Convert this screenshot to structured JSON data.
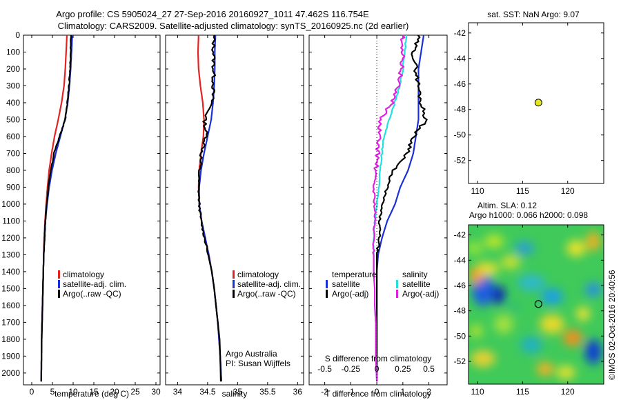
{
  "title_line1": "Argo profile: CS 5905024_27 27-Sep-2016 20160927_1011 47.462S 116.754E",
  "title_line2": "Climatology: CARS2009. Satellite-adjusted climatology: synTS_20160925.nc (2d earlier)",
  "watermark": "©IMOS 02-Oct-2016 20:40:56",
  "colors": {
    "climatology": "#e32222",
    "satellite": "#1a2fd6",
    "argo": "#000000",
    "satellite_s": "#22e0e0",
    "argo_s": "#e020e0",
    "dot": "#e6e61e"
  },
  "chart_data": [
    {
      "type": "line",
      "name": "temperature_profile",
      "xlabel": "temperature (deg C)",
      "xlim": [
        -2,
        31
      ],
      "ylim": [
        2070,
        0
      ],
      "xticks": [
        "0",
        "5",
        "10",
        "15",
        "20",
        "25",
        "30"
      ],
      "yticks": [
        "0",
        "100",
        "200",
        "300",
        "400",
        "500",
        "600",
        "700",
        "800",
        "900",
        "1000",
        "1100",
        "1200",
        "1300",
        "1400",
        "1500",
        "1600",
        "1700",
        "1800",
        "1900",
        "2000"
      ],
      "legend": [
        "climatology",
        "satellite-adj. clim.",
        "Argo(..raw -QC)"
      ],
      "series": [
        {
          "name": "climatology",
          "x": [
            8.5,
            8.3,
            8.1,
            7.8,
            7.2,
            6.4,
            5.5,
            4.8,
            4.2,
            3.8,
            3.5,
            3.2,
            3.0,
            2.9,
            2.8,
            2.7,
            2.6,
            2.5,
            2.4,
            2.35,
            2.3
          ],
          "y": [
            0,
            100,
            200,
            300,
            400,
            500,
            600,
            700,
            800,
            900,
            1000,
            1100,
            1200,
            1300,
            1400,
            1500,
            1600,
            1700,
            1800,
            1900,
            2050
          ]
        },
        {
          "name": "satellite-adj. clim.",
          "x": [
            9.8,
            9.6,
            9.4,
            9.1,
            8.7,
            8.0,
            6.9,
            5.8,
            4.9,
            4.2,
            3.7,
            3.3,
            3.1,
            2.9,
            2.8,
            2.7,
            2.6,
            2.5,
            2.4,
            2.35,
            2.3
          ],
          "y": [
            0,
            100,
            200,
            300,
            400,
            500,
            600,
            700,
            800,
            900,
            1000,
            1100,
            1200,
            1300,
            1400,
            1500,
            1600,
            1700,
            1800,
            1900,
            2050
          ]
        },
        {
          "name": "Argo(..raw -QC)",
          "x": [
            9.5,
            9.4,
            9.3,
            9.0,
            8.6,
            8.1,
            6.7,
            5.4,
            4.6,
            4.0,
            3.6,
            3.3,
            3.1,
            2.9,
            2.8,
            2.7,
            2.6,
            2.5,
            2.4,
            2.35,
            2.3
          ],
          "y": [
            0,
            100,
            200,
            300,
            400,
            500,
            600,
            700,
            800,
            900,
            1000,
            1100,
            1200,
            1300,
            1400,
            1500,
            1600,
            1700,
            1800,
            1900,
            2050
          ]
        }
      ]
    },
    {
      "type": "line",
      "name": "salinity_profile",
      "xlabel": "salinity",
      "xlim": [
        33.8,
        36.1
      ],
      "ylim": [
        2070,
        0
      ],
      "xticks": [
        "34",
        "34.5",
        "35",
        "35.5",
        "36"
      ],
      "legend": [
        "climatology",
        "satellite-adj. clim.",
        "Argo(..raw -QC)"
      ],
      "annotation": [
        "Argo Australia",
        "PI: Susan Wijffels"
      ],
      "series": [
        {
          "name": "climatology",
          "x": [
            34.35,
            34.34,
            34.35,
            34.38,
            34.42,
            34.44,
            34.43,
            34.39,
            34.36,
            34.35,
            34.36,
            34.4,
            34.46,
            34.52,
            34.57,
            34.61,
            34.64,
            34.67,
            34.69,
            34.71,
            34.73
          ],
          "y": [
            0,
            100,
            200,
            300,
            400,
            500,
            600,
            700,
            800,
            900,
            1000,
            1100,
            1200,
            1300,
            1400,
            1500,
            1600,
            1700,
            1800,
            1900,
            2050
          ]
        },
        {
          "name": "satellite-adj. clim.",
          "x": [
            34.63,
            34.62,
            34.62,
            34.61,
            34.59,
            34.56,
            34.5,
            34.44,
            34.39,
            34.36,
            34.36,
            34.4,
            34.46,
            34.52,
            34.57,
            34.61,
            34.64,
            34.67,
            34.69,
            34.71,
            34.73
          ],
          "y": [
            0,
            100,
            200,
            300,
            400,
            500,
            600,
            700,
            800,
            900,
            1000,
            1100,
            1200,
            1300,
            1400,
            1500,
            1600,
            1700,
            1800,
            1900,
            2050
          ]
        },
        {
          "name": "Argo(..raw -QC)",
          "x": [
            34.6,
            34.6,
            34.6,
            34.6,
            34.57,
            34.45,
            34.48,
            34.4,
            34.36,
            34.35,
            34.36,
            34.39,
            34.45,
            34.51,
            34.57,
            34.61,
            34.64,
            34.67,
            34.7,
            34.71,
            34.72
          ],
          "y": [
            0,
            100,
            200,
            300,
            400,
            500,
            600,
            700,
            800,
            900,
            1000,
            1100,
            1200,
            1300,
            1400,
            1500,
            1600,
            1700,
            1800,
            1900,
            2050
          ]
        }
      ]
    },
    {
      "type": "line",
      "name": "difference_profile",
      "xlabel": "T difference from climatology",
      "xlim": [
        -2.6,
        2.7
      ],
      "ylim": [
        2070,
        0
      ],
      "xticks": [
        "-2",
        "-1",
        "0",
        "1",
        "2"
      ],
      "top_label": "S difference from climatology",
      "top_ticks": [
        "-0.5",
        "-0.25",
        "0",
        "0.25",
        "0.5"
      ],
      "legend_t_title": "temperature",
      "legend_s_title": "salinity",
      "legend_t": [
        "satellite",
        "Argo(-adj)"
      ],
      "legend_s": [
        "satellite",
        "Argo(-adj)"
      ],
      "series": [
        {
          "name": "T satellite",
          "x": [
            1.8,
            1.7,
            1.6,
            1.6,
            1.6,
            1.6,
            1.5,
            1.4,
            1.2,
            0.9,
            0.7,
            0.4,
            0.2,
            0.05,
            0,
            0,
            0,
            0,
            0,
            0,
            0
          ],
          "y": [
            0,
            100,
            200,
            300,
            400,
            500,
            600,
            700,
            800,
            900,
            1000,
            1100,
            1200,
            1300,
            1400,
            1500,
            1600,
            1700,
            1800,
            1900,
            2050
          ]
        },
        {
          "name": "T Argo(-adj)",
          "x": [
            1.6,
            1.4,
            1.5,
            1.6,
            1.7,
            1.9,
            1.4,
            1.2,
            0.6,
            0.4,
            0.2,
            0.1,
            0.1,
            0,
            0,
            0,
            0,
            0,
            0,
            0,
            0
          ],
          "y": [
            0,
            100,
            200,
            300,
            400,
            500,
            600,
            700,
            800,
            900,
            1000,
            1100,
            1200,
            1300,
            1400,
            1500,
            1600,
            1700,
            1800,
            1900,
            2050
          ]
        },
        {
          "name": "S satellite",
          "x": [
            0.28,
            0.27,
            0.25,
            0.22,
            0.17,
            0.12,
            0.07,
            0.05,
            0.03,
            0.02,
            0,
            -0.02,
            -0.03,
            -0.03,
            -0.03,
            -0.02,
            -0.02,
            -0.01,
            -0.01,
            -0.01,
            0
          ],
          "y": [
            0,
            100,
            200,
            300,
            400,
            500,
            600,
            700,
            800,
            900,
            1000,
            1100,
            1200,
            1300,
            1400,
            1500,
            1600,
            1700,
            1800,
            1900,
            2050
          ]
        },
        {
          "name": "S Argo(-adj)",
          "x": [
            0.25,
            0.25,
            0.24,
            0.2,
            0.15,
            0.03,
            0.02,
            0.01,
            -0.01,
            -0.03,
            -0.02,
            -0.02,
            -0.03,
            -0.03,
            -0.03,
            -0.02,
            -0.02,
            -0.01,
            -0.01,
            -0.01,
            0
          ],
          "y": [
            0,
            100,
            200,
            300,
            400,
            500,
            600,
            700,
            800,
            900,
            1000,
            1100,
            1200,
            1300,
            1400,
            1500,
            1600,
            1700,
            1800,
            1900,
            2050
          ]
        }
      ]
    },
    {
      "type": "scatter",
      "name": "sst_map",
      "title": "sat. SST: NaN Argo: 9.07",
      "xlim": [
        109,
        124
      ],
      "ylim": [
        -53.8,
        -41.2
      ],
      "xticks": [
        "110",
        "115",
        "120"
      ],
      "yticks": [
        "-42",
        "-44",
        "-46",
        "-48",
        "-50",
        "-52"
      ],
      "points": [
        {
          "x": 116.754,
          "y": -47.462
        }
      ]
    },
    {
      "type": "heatmap",
      "name": "sla_map",
      "title_line1": "Altim. SLA: 0.12",
      "title_line2": "Argo h1000: 0.066 h2000: 0.098",
      "xlim": [
        109,
        124
      ],
      "ylim": [
        -53.8,
        -41.2
      ],
      "xticks": [
        "110",
        "115",
        "120"
      ],
      "yticks": [
        "-42",
        "-44",
        "-46",
        "-48",
        "-50",
        "-52"
      ],
      "points": [
        {
          "x": 116.754,
          "y": -47.462
        }
      ]
    }
  ]
}
